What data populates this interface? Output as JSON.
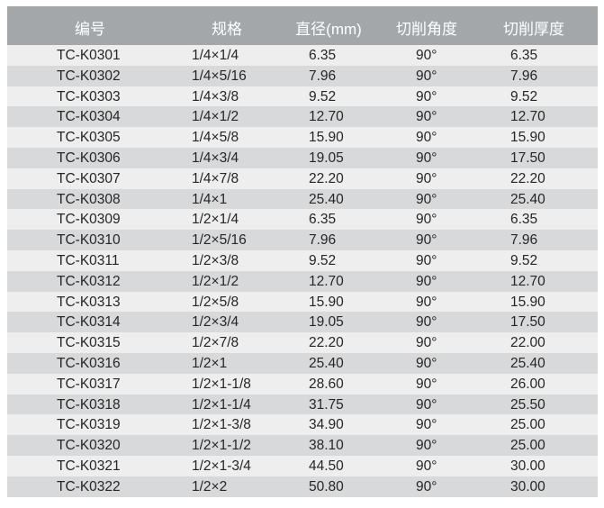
{
  "table": {
    "headers": [
      "编号",
      "规格",
      "直径(mm)",
      "切削角度",
      "切削厚度"
    ],
    "rows": [
      [
        "TC-K0301",
        "1/4×1/4",
        "6.35",
        "90°",
        "6.35"
      ],
      [
        "TC-K0302",
        "1/4×5/16",
        "7.96",
        "90°",
        "7.96"
      ],
      [
        "TC-K0303",
        "1/4×3/8",
        "9.52",
        "90°",
        "9.52"
      ],
      [
        "TC-K0304",
        "1/4×1/2",
        "12.70",
        "90°",
        "12.70"
      ],
      [
        "TC-K0305",
        "1/4×5/8",
        "15.90",
        "90°",
        "15.90"
      ],
      [
        "TC-K0306",
        "1/4×3/4",
        "19.05",
        "90°",
        "17.50"
      ],
      [
        "TC-K0307",
        "1/4×7/8",
        "22.20",
        "90°",
        "22.20"
      ],
      [
        "TC-K0308",
        "1/4×1",
        "25.40",
        "90°",
        "25.40"
      ],
      [
        "TC-K0309",
        "1/2×1/4",
        "6.35",
        "90°",
        "6.35"
      ],
      [
        "TC-K0310",
        "1/2×5/16",
        "7.96",
        "90°",
        "7.96"
      ],
      [
        "TC-K0311",
        "1/2×3/8",
        "9.52",
        "90°",
        "9.52"
      ],
      [
        "TC-K0312",
        "1/2×1/2",
        "12.70",
        "90°",
        "12.70"
      ],
      [
        "TC-K0313",
        "1/2×5/8",
        "15.90",
        "90°",
        "15.90"
      ],
      [
        "TC-K0314",
        "1/2×3/4",
        "19.05",
        "90°",
        "17.50"
      ],
      [
        "TC-K0315",
        "1/2×7/8",
        "22.20",
        "90°",
        "22.00"
      ],
      [
        "TC-K0316",
        "1/2×1",
        "25.40",
        "90°",
        "25.40"
      ],
      [
        "TC-K0317",
        "1/2×1-1/8",
        "28.60",
        "90°",
        "26.00"
      ],
      [
        "TC-K0318",
        "1/2×1-1/4",
        "31.75",
        "90°",
        "25.50"
      ],
      [
        "TC-K0319",
        "1/2×1-3/8",
        "34.90",
        "90°",
        "25.00"
      ],
      [
        "TC-K0320",
        "1/2×1-1/2",
        "38.10",
        "90°",
        "25.00"
      ],
      [
        "TC-K0321",
        "1/2×1-3/4",
        "44.50",
        "90°",
        "30.00"
      ],
      [
        "TC-K0322",
        "1/2×2",
        "50.80",
        "90°",
        "30.00"
      ]
    ]
  },
  "colors": {
    "header_bg": "#a4a7a9",
    "row_light": "#eeeeef",
    "row_dark": "#d8d9da"
  }
}
